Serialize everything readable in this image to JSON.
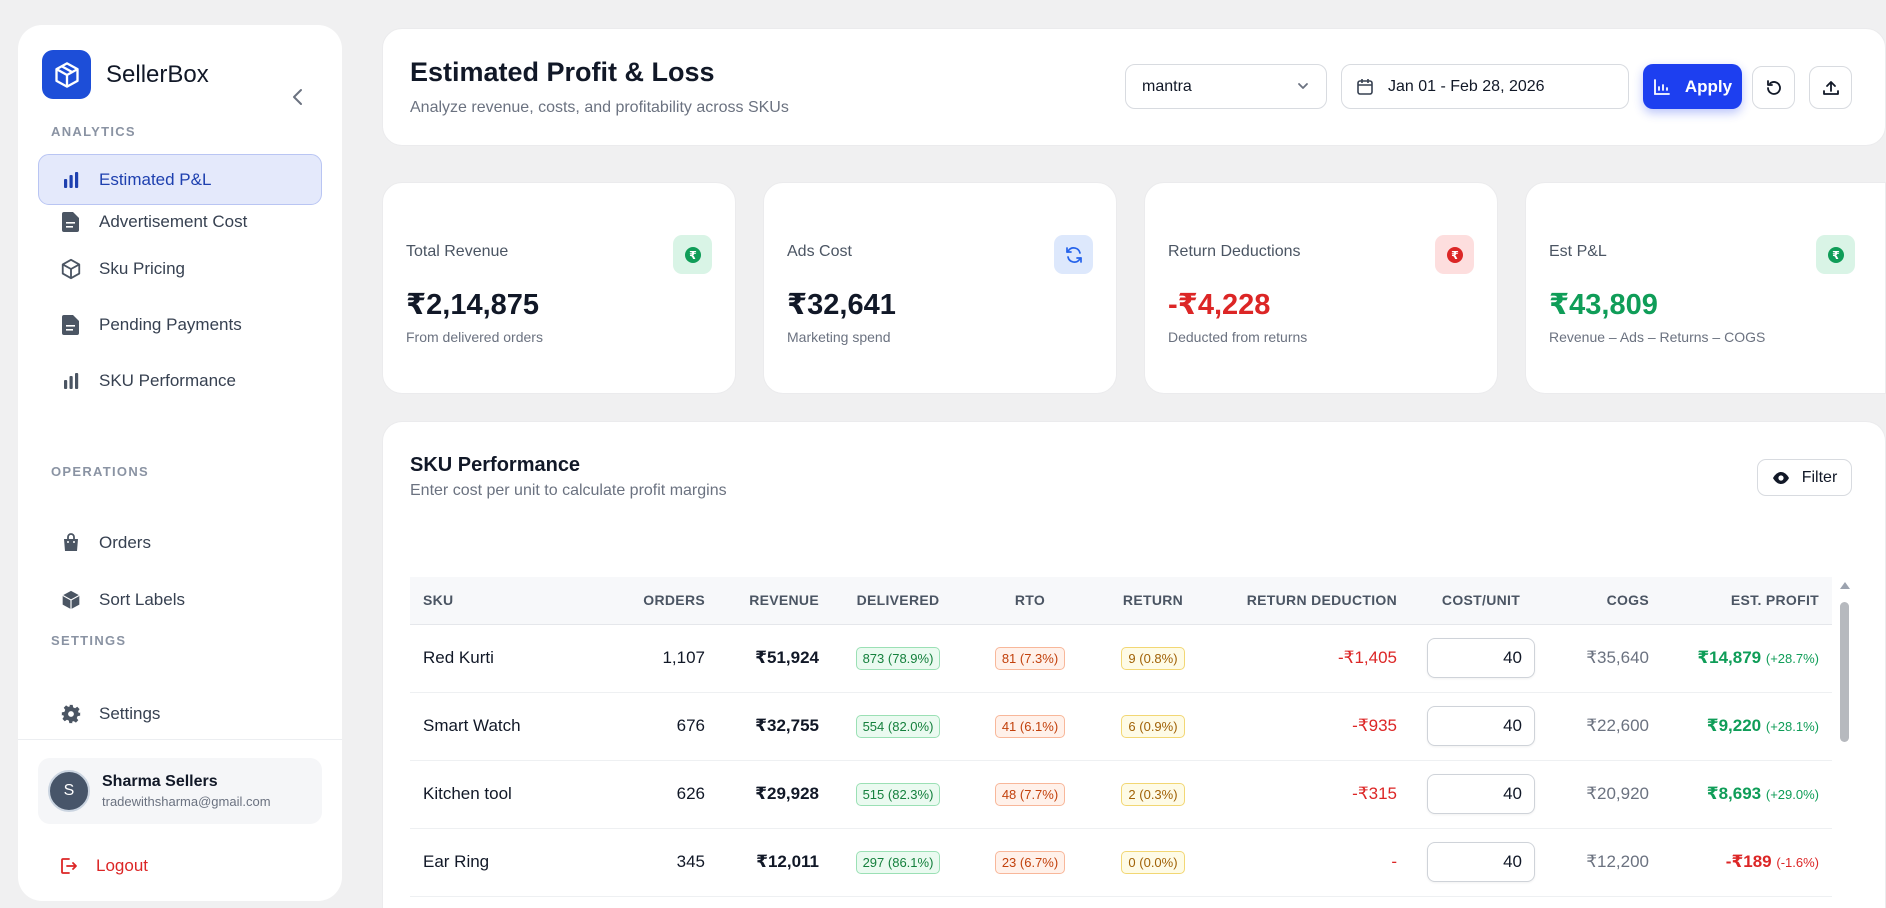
{
  "sidebar": {
    "brand": "SellerBox",
    "sections": {
      "analytics": "ANALYTICS",
      "operations": "OPERATIONS",
      "settings": "SETTINGS"
    },
    "items": [
      {
        "label": "Estimated P&L",
        "icon": "bar-chart-icon",
        "active": true
      },
      {
        "label": "Advertisement Cost",
        "icon": "document-icon"
      },
      {
        "label": "Sku Pricing",
        "icon": "box-icon"
      },
      {
        "label": "Pending Payments",
        "icon": "document-icon"
      },
      {
        "label": "SKU Performance",
        "icon": "bar-chart-icon"
      },
      {
        "label": "Orders",
        "icon": "shopping-bag-icon"
      },
      {
        "label": "Sort Labels",
        "icon": "cube-icon"
      },
      {
        "label": "Settings",
        "icon": "gear-icon"
      }
    ],
    "user": {
      "initial": "S",
      "name": "Sharma Sellers",
      "email": "tradewithsharma@gmail.com"
    },
    "logout": "Logout"
  },
  "header": {
    "title": "Estimated Profit & Loss",
    "subtitle": "Analyze revenue, costs, and profitability across SKUs",
    "store_select": "mantra",
    "date_range": "Jan 01 - Feb 28, 2026",
    "apply_label": "Apply"
  },
  "stats": [
    {
      "label": "Total Revenue",
      "value": "₹2,14,875",
      "note": "From delivered orders",
      "icon": "rupee-icon",
      "color": "#111827"
    },
    {
      "label": "Ads Cost",
      "value": "₹32,641",
      "note": "Marketing spend",
      "icon": "refresh-icon",
      "color": "#111827"
    },
    {
      "label": "Return Deductions",
      "value": "-₹4,228",
      "note": "Deducted from returns",
      "icon": "rupee-icon",
      "color": "#dc2626"
    },
    {
      "label": "Est P&L",
      "value": "₹43,809",
      "note": "Revenue – Ads – Returns – COGS",
      "icon": "rupee-icon",
      "color": "#0f9d58"
    }
  ],
  "sku_table": {
    "title": "SKU Performance",
    "subtitle": "Enter cost per unit to calculate profit margins",
    "filter_label": "Filter",
    "columns": [
      "SKU",
      "Orders",
      "Revenue",
      "Delivered",
      "RTO",
      "Return",
      "Return Deduction",
      "Cost/Unit",
      "COGS",
      "Est. Profit"
    ],
    "rows": [
      {
        "sku": "Red Kurti",
        "orders": "1,107",
        "revenue": "₹51,924",
        "delivered": "873 (78.9%)",
        "rto": "81 (7.3%)",
        "return": "9 (0.8%)",
        "return_deduction": "-₹1,405",
        "cost_unit": "40",
        "cogs": "₹35,640",
        "profit": "₹14,879",
        "profit_pct": "(+28.7%)",
        "profit_sign": "pos"
      },
      {
        "sku": "Smart Watch",
        "orders": "676",
        "revenue": "₹32,755",
        "delivered": "554 (82.0%)",
        "rto": "41 (6.1%)",
        "return": "6 (0.9%)",
        "return_deduction": "-₹935",
        "cost_unit": "40",
        "cogs": "₹22,600",
        "profit": "₹9,220",
        "profit_pct": "(+28.1%)",
        "profit_sign": "pos"
      },
      {
        "sku": "Kitchen tool",
        "orders": "626",
        "revenue": "₹29,928",
        "delivered": "515 (82.3%)",
        "rto": "48 (7.7%)",
        "return": "2 (0.3%)",
        "return_deduction": "-₹315",
        "cost_unit": "40",
        "cogs": "₹20,920",
        "profit": "₹8,693",
        "profit_pct": "(+29.0%)",
        "profit_sign": "pos"
      },
      {
        "sku": "Ear Ring",
        "orders": "345",
        "revenue": "₹12,011",
        "delivered": "297 (86.1%)",
        "rto": "23 (6.7%)",
        "return": "0 (0.0%)",
        "return_deduction": "-",
        "cost_unit": "40",
        "cogs": "₹12,200",
        "profit": "-₹189",
        "profit_pct": "(-1.6%)",
        "profit_sign": "neg"
      }
    ]
  },
  "colors": {
    "accent": "#1d3ff0",
    "positive": "#0f9d58",
    "negative": "#dc2626"
  }
}
